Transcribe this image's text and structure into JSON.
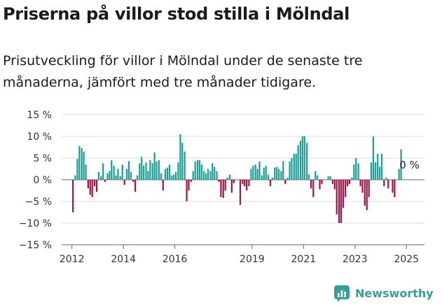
{
  "title": "Priserna på villor stod stilla i Mölndal",
  "subtitle": "Prisutveckling för villor i Mölndal under de senaste tre månaderna, jämfört med tre månader tidigare.",
  "brand": {
    "name": "Newsworthy",
    "icon": "newsworthy-logo-icon",
    "color": "#3a9e98"
  },
  "chart_data": {
    "type": "bar",
    "title": "",
    "xlabel": "",
    "ylabel": "",
    "ylim": [
      -15,
      15
    ],
    "yticks": [
      15,
      10,
      5,
      0,
      -5,
      -10,
      -15
    ],
    "ytick_labels": [
      "15 %",
      "10 %",
      "5 %",
      "0 %",
      "−5 %",
      "−10 %",
      "−15 %"
    ],
    "xlim": [
      2011.6,
      2025.7
    ],
    "xticks": [
      2012,
      2014,
      2016,
      2019,
      2021,
      2023,
      2025
    ],
    "xtick_labels": [
      "2012",
      "2014",
      "2016",
      "2019",
      "2021",
      "2023",
      "2025"
    ],
    "grid": "horizontal",
    "colors": {
      "positive": "#1a9e94",
      "negative": "#a0124a"
    },
    "annotation": {
      "text": "0 %",
      "x": 2025.0,
      "y": 0
    },
    "points": [
      {
        "x": 2012.04,
        "y": -7.5
      },
      {
        "x": 2012.13,
        "y": 1.0
      },
      {
        "x": 2012.21,
        "y": 4.8
      },
      {
        "x": 2012.29,
        "y": 7.8
      },
      {
        "x": 2012.38,
        "y": 7.3
      },
      {
        "x": 2012.46,
        "y": 6.5
      },
      {
        "x": 2012.54,
        "y": 3.5
      },
      {
        "x": 2012.63,
        "y": -2.0
      },
      {
        "x": 2012.71,
        "y": -3.5
      },
      {
        "x": 2012.79,
        "y": -4.0
      },
      {
        "x": 2012.88,
        "y": -1.5
      },
      {
        "x": 2012.96,
        "y": -2.8
      },
      {
        "x": 2013.04,
        "y": 1.8
      },
      {
        "x": 2013.13,
        "y": 0.8
      },
      {
        "x": 2013.21,
        "y": 3.8
      },
      {
        "x": 2013.29,
        "y": -0.5
      },
      {
        "x": 2013.38,
        "y": 1.5
      },
      {
        "x": 2013.46,
        "y": 2.0
      },
      {
        "x": 2013.54,
        "y": 4.5
      },
      {
        "x": 2013.63,
        "y": 3.2
      },
      {
        "x": 2013.71,
        "y": 1.0
      },
      {
        "x": 2013.79,
        "y": 2.5
      },
      {
        "x": 2013.88,
        "y": 0.8
      },
      {
        "x": 2013.96,
        "y": 3.5
      },
      {
        "x": 2014.04,
        "y": -1.2
      },
      {
        "x": 2014.13,
        "y": 2.5
      },
      {
        "x": 2014.21,
        "y": 4.3
      },
      {
        "x": 2014.29,
        "y": 1.8
      },
      {
        "x": 2014.38,
        "y": -0.5
      },
      {
        "x": 2014.46,
        "y": -2.8
      },
      {
        "x": 2014.54,
        "y": 1.0
      },
      {
        "x": 2014.63,
        "y": 3.8
      },
      {
        "x": 2014.71,
        "y": 5.3
      },
      {
        "x": 2014.79,
        "y": 3.2
      },
      {
        "x": 2014.88,
        "y": 4.0
      },
      {
        "x": 2014.96,
        "y": 2.0
      },
      {
        "x": 2015.04,
        "y": 4.5
      },
      {
        "x": 2015.13,
        "y": 3.8
      },
      {
        "x": 2015.21,
        "y": 6.3
      },
      {
        "x": 2015.29,
        "y": 4.2
      },
      {
        "x": 2015.38,
        "y": 4.5
      },
      {
        "x": 2015.46,
        "y": 1.5
      },
      {
        "x": 2015.54,
        "y": -2.5
      },
      {
        "x": 2015.63,
        "y": 2.5
      },
      {
        "x": 2015.71,
        "y": 2.8
      },
      {
        "x": 2015.79,
        "y": 3.5
      },
      {
        "x": 2015.88,
        "y": 1.0
      },
      {
        "x": 2015.96,
        "y": 1.2
      },
      {
        "x": 2016.04,
        "y": 1.8
      },
      {
        "x": 2016.13,
        "y": 4.0
      },
      {
        "x": 2016.21,
        "y": 10.5
      },
      {
        "x": 2016.29,
        "y": 8.5
      },
      {
        "x": 2016.38,
        "y": 6.5
      },
      {
        "x": 2016.46,
        "y": -5.0
      },
      {
        "x": 2016.54,
        "y": -2.5
      },
      {
        "x": 2016.63,
        "y": -0.5
      },
      {
        "x": 2016.71,
        "y": 2.0
      },
      {
        "x": 2016.79,
        "y": 4.2
      },
      {
        "x": 2016.88,
        "y": 4.5
      },
      {
        "x": 2016.96,
        "y": 4.5
      },
      {
        "x": 2017.04,
        "y": 3.5
      },
      {
        "x": 2017.13,
        "y": 2.0
      },
      {
        "x": 2017.21,
        "y": 1.5
      },
      {
        "x": 2017.29,
        "y": 2.5
      },
      {
        "x": 2017.38,
        "y": 2.0
      },
      {
        "x": 2017.46,
        "y": 3.8
      },
      {
        "x": 2017.54,
        "y": 3.0
      },
      {
        "x": 2017.63,
        "y": 2.0
      },
      {
        "x": 2017.71,
        "y": -0.5
      },
      {
        "x": 2017.79,
        "y": -4.0
      },
      {
        "x": 2017.88,
        "y": -4.2
      },
      {
        "x": 2017.96,
        "y": -2.5
      },
      {
        "x": 2018.04,
        "y": 0.5
      },
      {
        "x": 2018.13,
        "y": 1.2
      },
      {
        "x": 2018.21,
        "y": -3.0
      },
      {
        "x": 2018.29,
        "y": -0.8
      },
      {
        "x": 2018.54,
        "y": -5.8
      },
      {
        "x": 2018.63,
        "y": -1.0
      },
      {
        "x": 2018.71,
        "y": -1.5
      },
      {
        "x": 2018.79,
        "y": -2.5
      },
      {
        "x": 2018.88,
        "y": -1.5
      },
      {
        "x": 2018.96,
        "y": 2.5
      },
      {
        "x": 2019.04,
        "y": 3.2
      },
      {
        "x": 2019.13,
        "y": 3.5
      },
      {
        "x": 2019.21,
        "y": 2.5
      },
      {
        "x": 2019.29,
        "y": 4.2
      },
      {
        "x": 2019.38,
        "y": 1.0
      },
      {
        "x": 2019.46,
        "y": 2.8
      },
      {
        "x": 2019.54,
        "y": 3.2
      },
      {
        "x": 2019.63,
        "y": 1.2
      },
      {
        "x": 2019.71,
        "y": -1.5
      },
      {
        "x": 2019.79,
        "y": 0.5
      },
      {
        "x": 2019.88,
        "y": 2.8
      },
      {
        "x": 2019.96,
        "y": 3.0
      },
      {
        "x": 2020.04,
        "y": 2.5
      },
      {
        "x": 2020.13,
        "y": 2.0
      },
      {
        "x": 2020.21,
        "y": 4.3
      },
      {
        "x": 2020.29,
        "y": -1.0
      },
      {
        "x": 2020.38,
        "y": 0.5
      },
      {
        "x": 2020.46,
        "y": 4.2
      },
      {
        "x": 2020.54,
        "y": 5.0
      },
      {
        "x": 2020.63,
        "y": 6.0
      },
      {
        "x": 2020.71,
        "y": 6.0
      },
      {
        "x": 2020.79,
        "y": 8.0
      },
      {
        "x": 2020.88,
        "y": 9.0
      },
      {
        "x": 2020.96,
        "y": 10.0
      },
      {
        "x": 2021.04,
        "y": 10.0
      },
      {
        "x": 2021.13,
        "y": 8.5
      },
      {
        "x": 2021.21,
        "y": 1.2
      },
      {
        "x": 2021.29,
        "y": -2.0
      },
      {
        "x": 2021.38,
        "y": -4.0
      },
      {
        "x": 2021.46,
        "y": 2.0
      },
      {
        "x": 2021.54,
        "y": 1.0
      },
      {
        "x": 2021.63,
        "y": -2.2
      },
      {
        "x": 2021.71,
        "y": -1.0
      },
      {
        "x": 2021.79,
        "y": 0.0
      },
      {
        "x": 2021.88,
        "y": 0.0
      },
      {
        "x": 2021.96,
        "y": 0.8
      },
      {
        "x": 2022.04,
        "y": 0.8
      },
      {
        "x": 2022.13,
        "y": -1.0
      },
      {
        "x": 2022.21,
        "y": -2.2
      },
      {
        "x": 2022.29,
        "y": -8.0
      },
      {
        "x": 2022.38,
        "y": -10.0
      },
      {
        "x": 2022.46,
        "y": -10.0
      },
      {
        "x": 2022.54,
        "y": -6.5
      },
      {
        "x": 2022.63,
        "y": -4.0
      },
      {
        "x": 2022.71,
        "y": -1.5
      },
      {
        "x": 2022.79,
        "y": -1.0
      },
      {
        "x": 2022.88,
        "y": 0.5
      },
      {
        "x": 2022.96,
        "y": 3.5
      },
      {
        "x": 2023.04,
        "y": 5.0
      },
      {
        "x": 2023.13,
        "y": 3.8
      },
      {
        "x": 2023.21,
        "y": -1.5
      },
      {
        "x": 2023.29,
        "y": -3.0
      },
      {
        "x": 2023.38,
        "y": -6.0
      },
      {
        "x": 2023.46,
        "y": -7.0
      },
      {
        "x": 2023.54,
        "y": -4.0
      },
      {
        "x": 2023.63,
        "y": 4.0
      },
      {
        "x": 2023.71,
        "y": 10.0
      },
      {
        "x": 2023.79,
        "y": 4.0
      },
      {
        "x": 2023.88,
        "y": 6.0
      },
      {
        "x": 2023.96,
        "y": 3.0
      },
      {
        "x": 2024.04,
        "y": 6.0
      },
      {
        "x": 2024.13,
        "y": -1.5
      },
      {
        "x": 2024.21,
        "y": 0.5
      },
      {
        "x": 2024.29,
        "y": -2.0
      },
      {
        "x": 2024.46,
        "y": -3.0
      },
      {
        "x": 2024.54,
        "y": -4.0
      },
      {
        "x": 2024.71,
        "y": 2.5
      },
      {
        "x": 2024.79,
        "y": 7.0
      }
    ]
  }
}
